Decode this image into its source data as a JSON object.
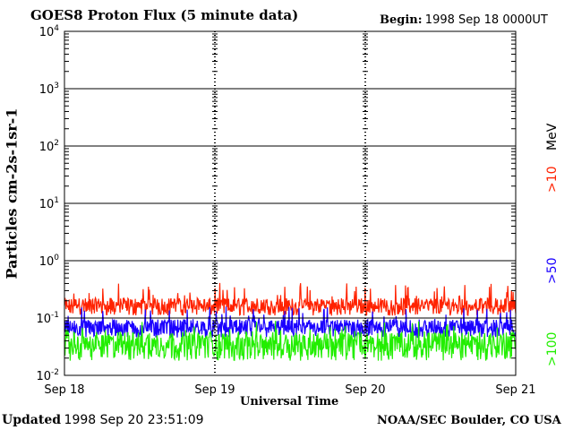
{
  "header": {
    "title": "GOES8 Proton Flux (5 minute data)",
    "begin_label": "Begin:",
    "begin_value": "1998 Sep 18 0000UT"
  },
  "footer": {
    "updated_label": "Updated",
    "updated_value": "1998 Sep 20 23:51:09",
    "credit": "NOAA/SEC Boulder, CO USA"
  },
  "chart_data": {
    "type": "line",
    "title": "GOES8 Proton Flux (5 minute data)",
    "xlabel": "Universal Time",
    "ylabel": "Particles cm-2s-1sr-1",
    "y_scale": "log",
    "ylim": [
      0.01,
      10000
    ],
    "y_ticks": [
      {
        "value": 10000,
        "base": "10",
        "exp": "4"
      },
      {
        "value": 1000,
        "base": "10",
        "exp": "3"
      },
      {
        "value": 100,
        "base": "10",
        "exp": "2"
      },
      {
        "value": 10,
        "base": "10",
        "exp": "1"
      },
      {
        "value": 1,
        "base": "10",
        "exp": "0"
      },
      {
        "value": 0.1,
        "base": "10",
        "exp": "-1"
      },
      {
        "value": 0.01,
        "base": "10",
        "exp": "-2"
      }
    ],
    "xlim": [
      0,
      72
    ],
    "x_ticks": [
      {
        "hours": 0,
        "label": "Sep 18"
      },
      {
        "hours": 24,
        "label": "Sep 19"
      },
      {
        "hours": 48,
        "label": "Sep 20"
      },
      {
        "hours": 72,
        "label": "Sep 21"
      }
    ],
    "grid": true,
    "series": [
      {
        "name": ">10 MeV",
        "color": "#ff2200",
        "typical": 0.18,
        "low": 0.11,
        "high": 0.42
      },
      {
        "name": ">50",
        "color": "#1a00ff",
        "typical": 0.075,
        "low": 0.045,
        "high": 0.16
      },
      {
        "name": ">100",
        "color": "#22ee00",
        "typical": 0.04,
        "low": 0.018,
        "high": 0.09
      }
    ],
    "legend": [
      {
        "text": ">10",
        "color": "#ff2200"
      },
      {
        "text": "MeV",
        "color": "#000000"
      },
      {
        "text": ">50",
        "color": "#1a00ff"
      },
      {
        "text": ">100",
        "color": "#22ee00"
      }
    ]
  }
}
